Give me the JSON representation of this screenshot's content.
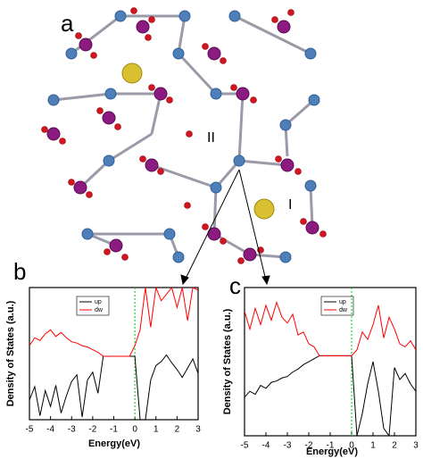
{
  "structure": {
    "panel_label": "a",
    "site_labels": [
      "I",
      "II"
    ]
  },
  "chart_data": [
    {
      "type": "line",
      "panel_label": "b",
      "x_label": "Energy(eV)",
      "y_label": "Density of States (a.u.)",
      "x": [
        -5,
        -4.75,
        -4.5,
        -4.25,
        -4,
        -3.75,
        -3.5,
        -3.25,
        -3,
        -2.75,
        -2.5,
        -2.25,
        -2,
        -1.75,
        -1.5,
        -1.25,
        -1,
        -0.75,
        -0.5,
        -0.25,
        0,
        0.25,
        0.5,
        0.75,
        1,
        1.25,
        1.5,
        1.75,
        2,
        2.25,
        2.5,
        2.75,
        3
      ],
      "series": [
        {
          "name": "up",
          "color": "#000000",
          "values": [
            1.5,
            2.5,
            0.3,
            2.2,
            1.0,
            2.6,
            0.5,
            1.8,
            2.9,
            3.4,
            0.2,
            3.0,
            3.6,
            2.0,
            4.8,
            4.8,
            4.8,
            4.8,
            4.8,
            4.8,
            4.8,
            0,
            0,
            3.0,
            4.1,
            4.4,
            4.9,
            4.3,
            3.8,
            3.2,
            3.9,
            4.6,
            3.5
          ]
        },
        {
          "name": "dw",
          "color": "#ff0000",
          "values": [
            5.6,
            6.2,
            6.0,
            6.5,
            6.8,
            6.3,
            6.6,
            6.2,
            5.9,
            5.8,
            5.6,
            5.5,
            5.3,
            5.1,
            4.8,
            4.8,
            4.8,
            4.8,
            4.8,
            4.8,
            5.6,
            6.8,
            10,
            7.0,
            10,
            9.0,
            9.5,
            10,
            8.5,
            10,
            7.5,
            10,
            9.8
          ]
        }
      ],
      "xlim": [
        -5,
        3
      ],
      "xticks": [
        -5,
        -4,
        -3,
        -2,
        -1,
        0,
        1,
        2,
        3
      ],
      "ylim": [
        0,
        10
      ],
      "fermi_level": 0,
      "fermi_color": "#00cc00",
      "legend": "upper left"
    },
    {
      "type": "line",
      "panel_label": "c",
      "x_label": "Energy(eV)",
      "y_label": "Density of States (a.u.)",
      "x": [
        -5,
        -4.75,
        -4.5,
        -4.25,
        -4,
        -3.75,
        -3.5,
        -3.25,
        -3,
        -2.75,
        -2.5,
        -2.25,
        -2,
        -1.75,
        -1.5,
        -1.25,
        -1,
        -0.75,
        -0.5,
        -0.25,
        0,
        0.25,
        0.5,
        0.75,
        1,
        1.25,
        1.5,
        1.75,
        2,
        2.25,
        2.5,
        2.75,
        3
      ],
      "series": [
        {
          "name": "up",
          "color": "#000000",
          "values": [
            2.6,
            3.0,
            2.8,
            3.4,
            3.2,
            3.6,
            3.7,
            3.9,
            4.0,
            4.3,
            4.5,
            4.8,
            5.0,
            5.2,
            5.4,
            5.4,
            5.4,
            5.4,
            5.4,
            5.4,
            5.4,
            0,
            1.5,
            3.5,
            5.0,
            3.0,
            0.5,
            0,
            4.6,
            3.8,
            4.2,
            3.5,
            3.0
          ]
        },
        {
          "name": "dw",
          "color": "#ff0000",
          "values": [
            8.4,
            7.2,
            8.6,
            7.5,
            8.8,
            7.8,
            9.0,
            8.0,
            7.6,
            8.2,
            6.8,
            7.0,
            6.2,
            6.0,
            5.4,
            5.4,
            5.4,
            5.4,
            5.4,
            5.4,
            5.4,
            5.8,
            7.0,
            6.5,
            7.5,
            8.8,
            6.6,
            8.0,
            7.2,
            6.2,
            6.0,
            6.4,
            5.8
          ]
        }
      ],
      "xlim": [
        -5,
        3
      ],
      "xticks": [
        -5,
        -4,
        -3,
        -2,
        -1,
        0,
        1,
        2,
        3
      ],
      "ylim": [
        0,
        10
      ],
      "fermi_level": 0,
      "fermi_color": "#00cc00",
      "legend": "upper left"
    }
  ]
}
